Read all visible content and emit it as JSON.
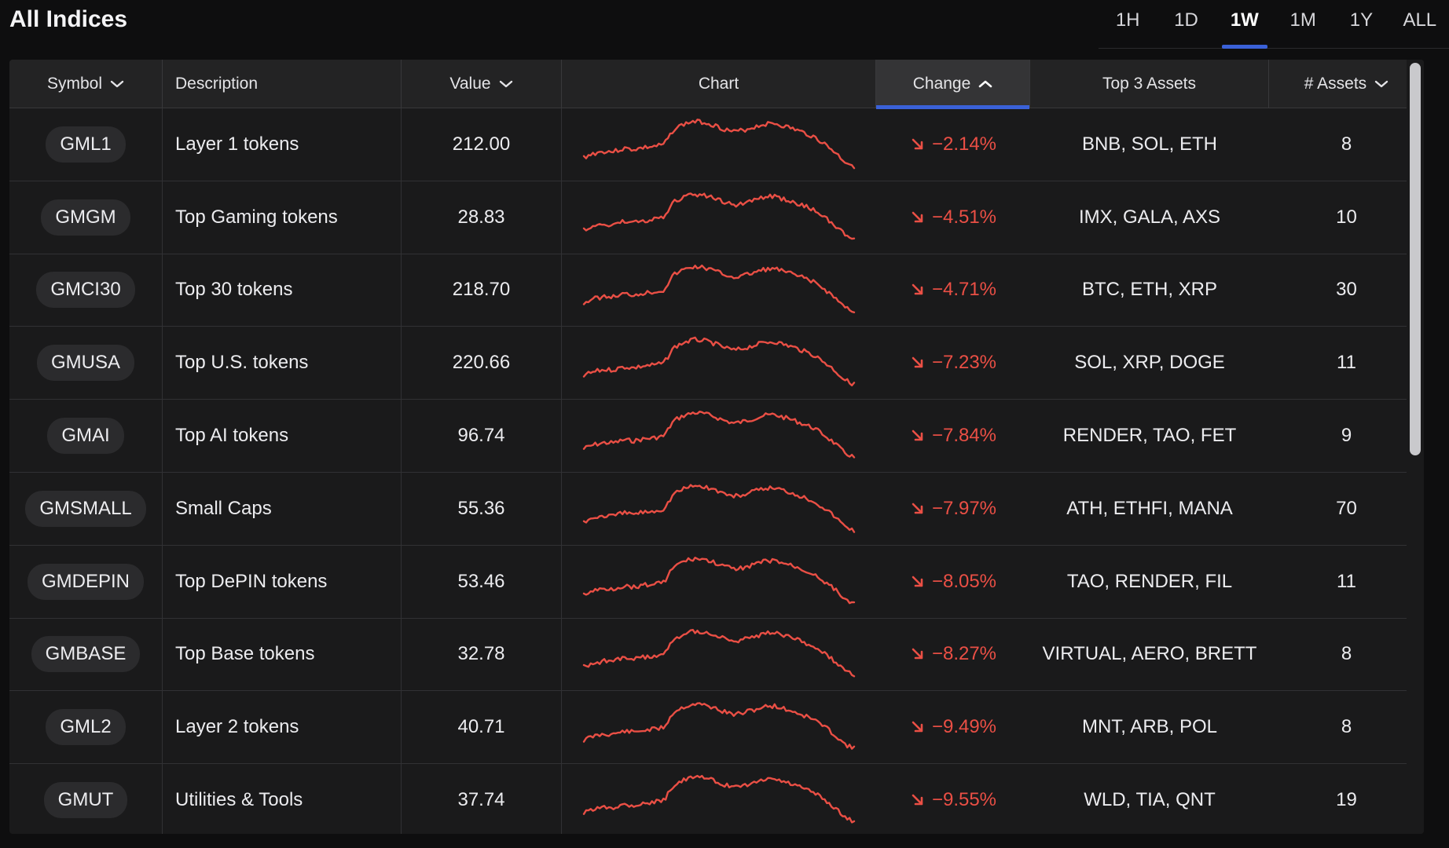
{
  "page": {
    "title": "All Indices"
  },
  "range_tabs": [
    {
      "label": "1H",
      "active": false
    },
    {
      "label": "1D",
      "active": false
    },
    {
      "label": "1W",
      "active": true
    },
    {
      "label": "1M",
      "active": false
    },
    {
      "label": "1Y",
      "active": false
    },
    {
      "label": "ALL",
      "active": false
    }
  ],
  "table": {
    "columns": {
      "symbol": "Symbol",
      "description": "Description",
      "value": "Value",
      "chart": "Chart",
      "change": "Change",
      "top_assets": "Top 3 Assets",
      "num_assets": "# Assets"
    },
    "rows": [
      {
        "symbol": "GML1",
        "description": "Layer 1 tokens",
        "value": "212.00",
        "change": "−2.14%",
        "top_assets": "BNB, SOL, ETH",
        "num_assets": "8"
      },
      {
        "symbol": "GMGM",
        "description": "Top Gaming tokens",
        "value": "28.83",
        "change": "−4.51%",
        "top_assets": "IMX, GALA, AXS",
        "num_assets": "10"
      },
      {
        "symbol": "GMCI30",
        "description": "Top 30 tokens",
        "value": "218.70",
        "change": "−4.71%",
        "top_assets": "BTC, ETH, XRP",
        "num_assets": "30"
      },
      {
        "symbol": "GMUSA",
        "description": "Top U.S. tokens",
        "value": "220.66",
        "change": "−7.23%",
        "top_assets": "SOL, XRP, DOGE",
        "num_assets": "11"
      },
      {
        "symbol": "GMAI",
        "description": "Top AI tokens",
        "value": "96.74",
        "change": "−7.84%",
        "top_assets": "RENDER, TAO, FET",
        "num_assets": "9"
      },
      {
        "symbol": "GMSMALL",
        "description": "Small Caps",
        "value": "55.36",
        "change": "−7.97%",
        "top_assets": "ATH, ETHFI, MANA",
        "num_assets": "70"
      },
      {
        "symbol": "GMDEPIN",
        "description": "Top DePIN tokens",
        "value": "53.46",
        "change": "−8.05%",
        "top_assets": "TAO, RENDER, FIL",
        "num_assets": "11"
      },
      {
        "symbol": "GMBASE",
        "description": "Top Base tokens",
        "value": "32.78",
        "change": "−8.27%",
        "top_assets": "VIRTUAL, AERO, BRETT",
        "num_assets": "8"
      },
      {
        "symbol": "GML2",
        "description": "Layer 2 tokens",
        "value": "40.71",
        "change": "−9.49%",
        "top_assets": "MNT, ARB, POL",
        "num_assets": "8"
      },
      {
        "symbol": "GMUT",
        "description": "Utilities & Tools",
        "value": "37.74",
        "change": "−9.55%",
        "top_assets": "WLD, TIA, QNT",
        "num_assets": "19"
      }
    ]
  },
  "colors": {
    "accent": "#3a61d8",
    "negative": "#ea4f45",
    "background": "#0e0e0f",
    "table_bg": "#1a1a1b"
  },
  "icons": {
    "sort_desc": "chevron-down-icon",
    "sort_asc": "chevron-up-icon",
    "change_down": "arrow-down-right-icon"
  }
}
